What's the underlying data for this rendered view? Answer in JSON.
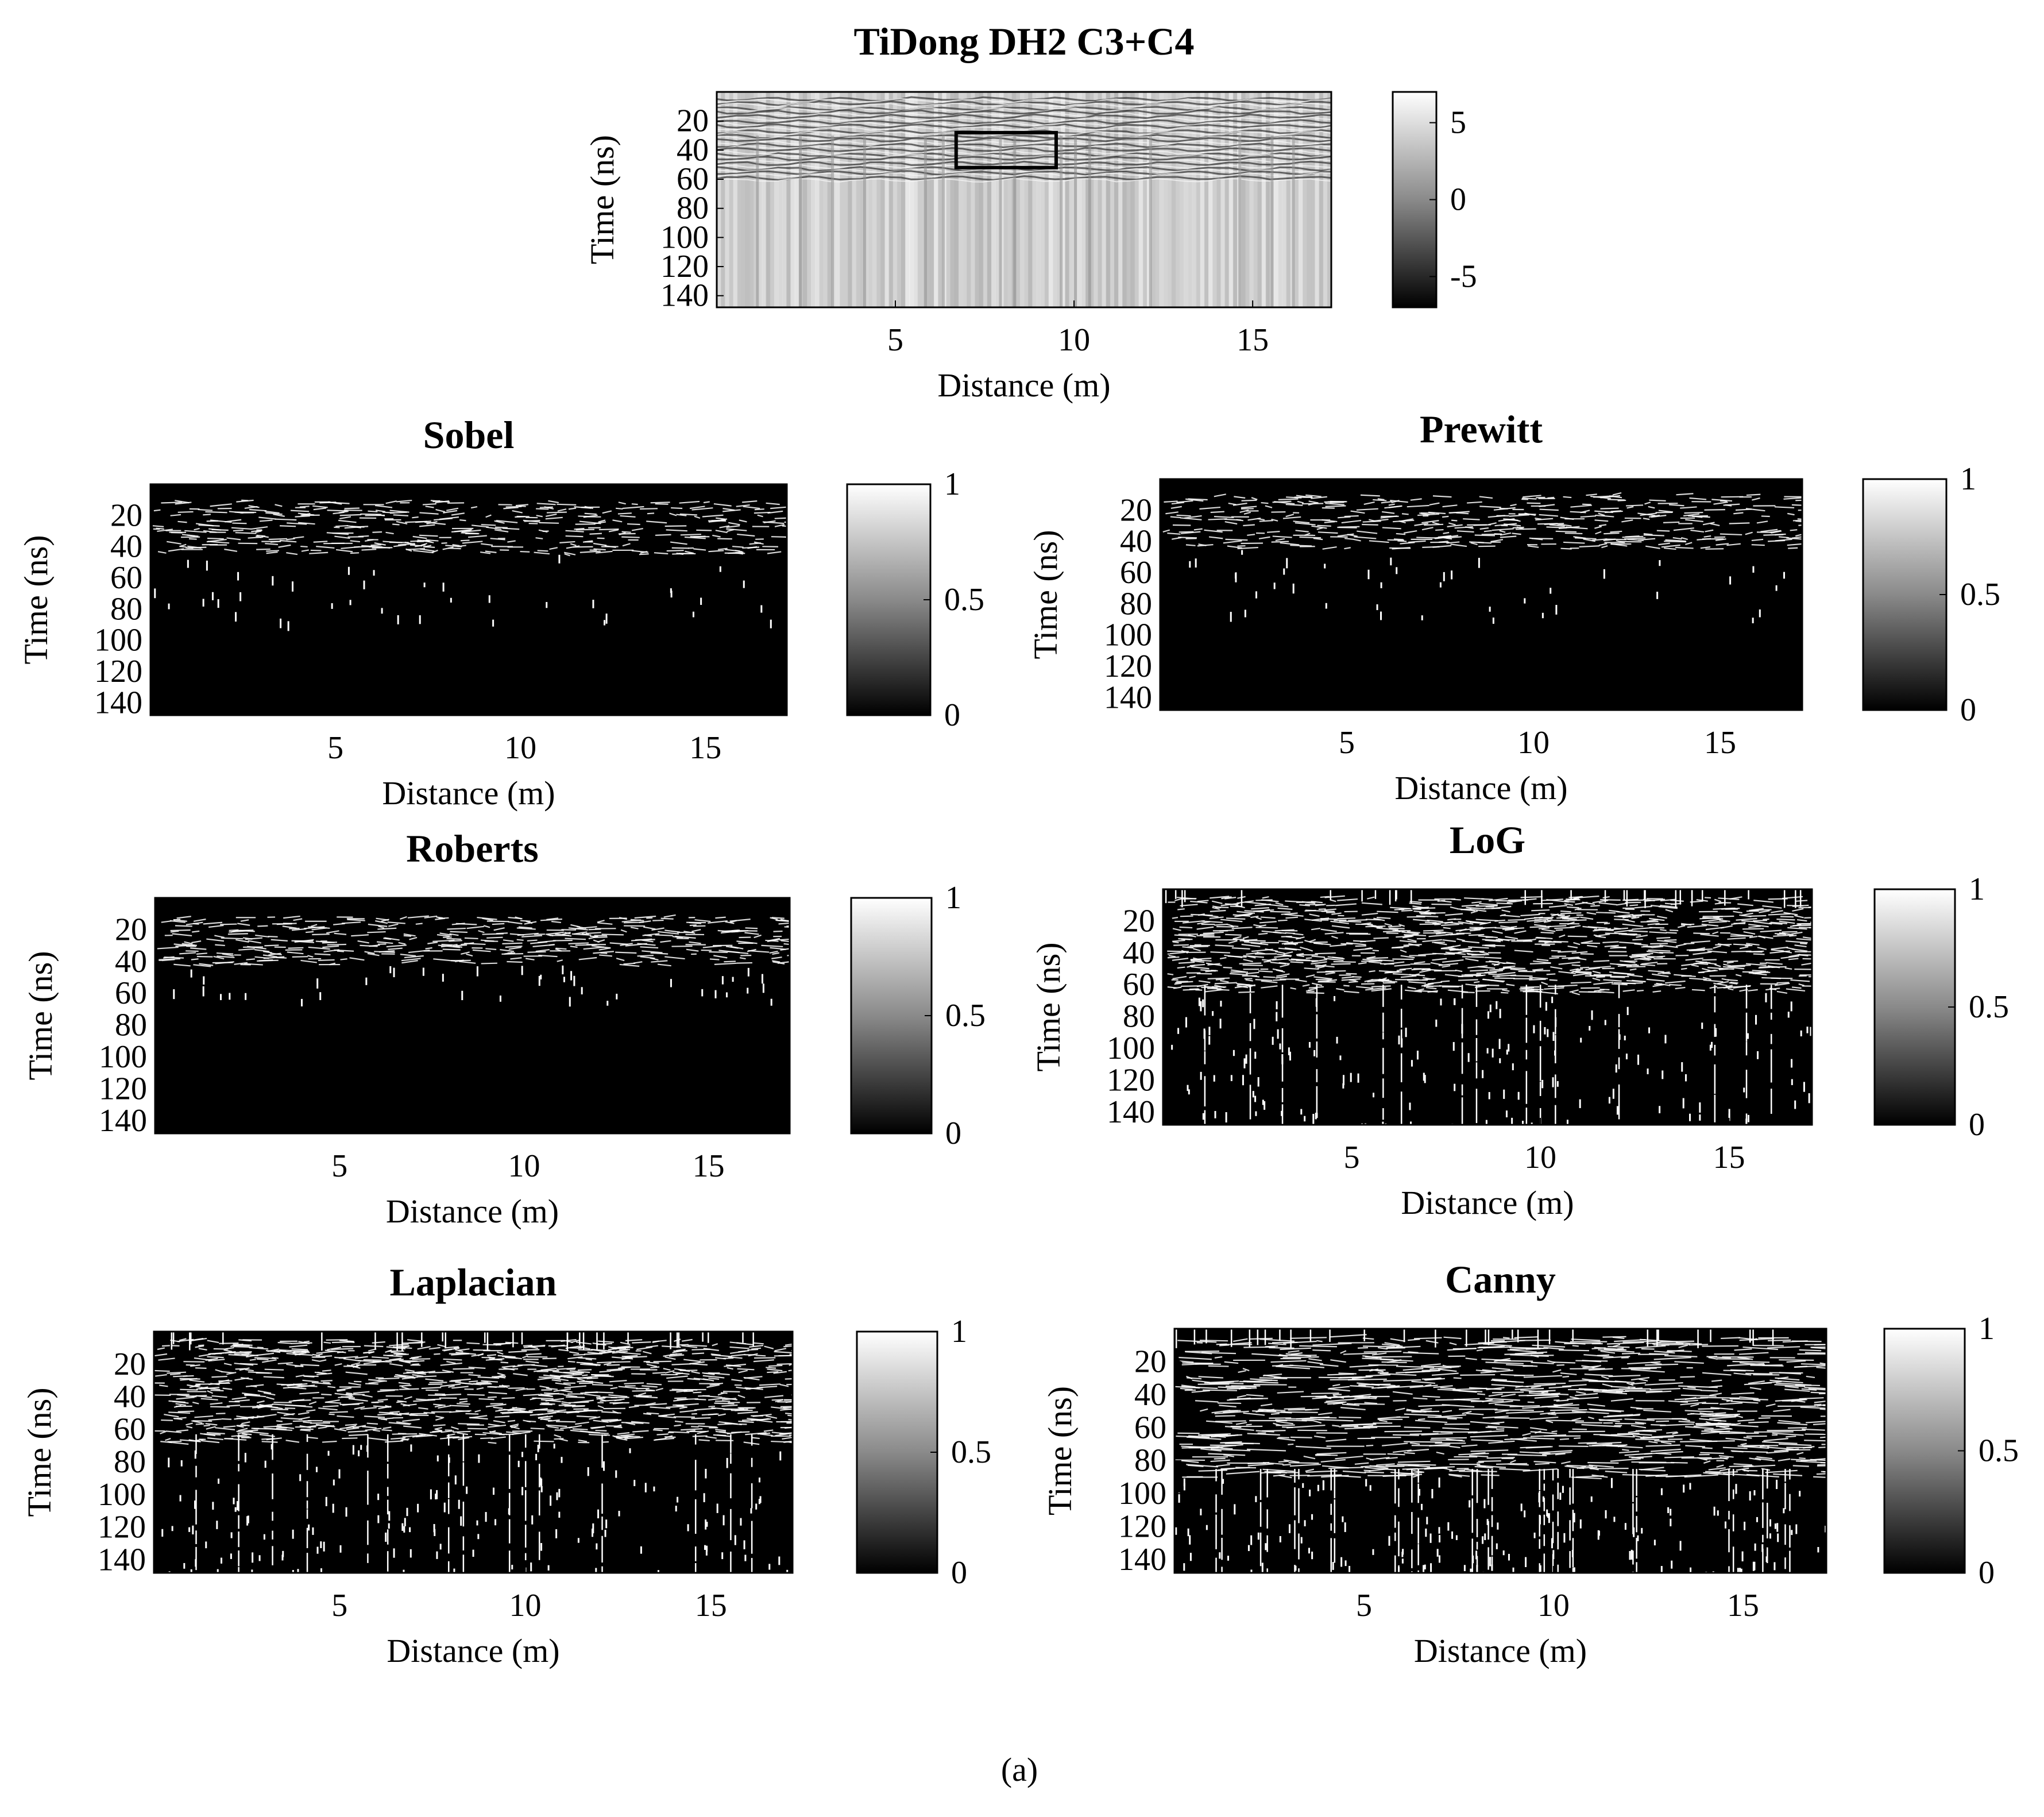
{
  "figure_caption": "(a)",
  "chart_data": [
    {
      "type": "heatmap",
      "title": "TiDong DH2 C3+C4",
      "xlabel": "Distance (m)",
      "ylabel": "Time (ns)",
      "x_ticks": [
        5,
        10,
        15
      ],
      "y_ticks": [
        20,
        40,
        60,
        80,
        100,
        120,
        140
      ],
      "xlim": [
        0,
        17.2
      ],
      "ylim": [
        0,
        148
      ],
      "colorbar": {
        "ticks": [
          5,
          0,
          -5
        ],
        "range": [
          -7,
          7
        ],
        "colormap": "gray"
      },
      "style": "radargram",
      "annotation": {
        "shape": "rectangle",
        "x_range": [
          6.7,
          9.5
        ],
        "y_range": [
          28,
          52
        ]
      }
    },
    {
      "type": "heatmap",
      "title": "Sobel",
      "xlabel": "Distance (m)",
      "ylabel": "Time (ns)",
      "x_ticks": [
        5,
        10,
        15
      ],
      "y_ticks": [
        20,
        40,
        60,
        80,
        100,
        120,
        140
      ],
      "xlim": [
        0,
        17.2
      ],
      "ylim": [
        0,
        148
      ],
      "colorbar": {
        "ticks": [
          1,
          0.5,
          0
        ],
        "range": [
          0,
          1
        ],
        "colormap": "gray"
      },
      "style": "sparse-edges",
      "edge_density": {
        "dense_time_range": [
          10,
          45
        ],
        "sparse_until": 90
      }
    },
    {
      "type": "heatmap",
      "title": "Prewitt",
      "xlabel": "Distance (m)",
      "ylabel": "Time (ns)",
      "x_ticks": [
        5,
        10,
        15
      ],
      "y_ticks": [
        20,
        40,
        60,
        80,
        100,
        120,
        140
      ],
      "xlim": [
        0,
        17.2
      ],
      "ylim": [
        0,
        148
      ],
      "colorbar": {
        "ticks": [
          1,
          0.5,
          0
        ],
        "range": [
          0,
          1
        ],
        "colormap": "gray"
      },
      "style": "sparse-edges",
      "edge_density": {
        "dense_time_range": [
          10,
          45
        ],
        "sparse_until": 90
      }
    },
    {
      "type": "heatmap",
      "title": "Roberts",
      "xlabel": "Distance (m)",
      "ylabel": "Time (ns)",
      "x_ticks": [
        5,
        10,
        15
      ],
      "y_ticks": [
        20,
        40,
        60,
        80,
        100,
        120,
        140
      ],
      "xlim": [
        0,
        17.2
      ],
      "ylim": [
        0,
        148
      ],
      "colorbar": {
        "ticks": [
          1,
          0.5,
          0
        ],
        "range": [
          0,
          1
        ],
        "colormap": "gray"
      },
      "style": "sparse-edges",
      "edge_density": {
        "dense_time_range": [
          12,
          42
        ],
        "sparse_until": 65
      }
    },
    {
      "type": "heatmap",
      "title": "LoG",
      "xlabel": "Distance (m)",
      "ylabel": "Time (ns)",
      "x_ticks": [
        5,
        10,
        15
      ],
      "y_ticks": [
        20,
        40,
        60,
        80,
        100,
        120,
        140
      ],
      "xlim": [
        0,
        17.2
      ],
      "ylim": [
        0,
        148
      ],
      "colorbar": {
        "ticks": [
          1,
          0.5,
          0
        ],
        "range": [
          0,
          1
        ],
        "colormap": "gray"
      },
      "style": "dense-edges",
      "edge_density": {
        "dense_time_range": [
          5,
          65
        ],
        "sparse_until": 148
      }
    },
    {
      "type": "heatmap",
      "title": "Laplacian",
      "xlabel": "Distance (m)",
      "ylabel": "Time (ns)",
      "x_ticks": [
        5,
        10,
        15
      ],
      "y_ticks": [
        20,
        40,
        60,
        80,
        100,
        120,
        140
      ],
      "xlim": [
        0,
        17.2
      ],
      "ylim": [
        0,
        148
      ],
      "colorbar": {
        "ticks": [
          1,
          0.5,
          0
        ],
        "range": [
          0,
          1
        ],
        "colormap": "gray"
      },
      "style": "dense-edges",
      "edge_density": {
        "dense_time_range": [
          5,
          68
        ],
        "sparse_until": 148
      }
    },
    {
      "type": "heatmap",
      "title": "Canny",
      "xlabel": "Distance (m)",
      "ylabel": "Time (ns)",
      "x_ticks": [
        5,
        10,
        15
      ],
      "y_ticks": [
        20,
        40,
        60,
        80,
        100,
        120,
        140
      ],
      "xlim": [
        0,
        17.2
      ],
      "ylim": [
        0,
        148
      ],
      "colorbar": {
        "ticks": [
          1,
          0.5,
          0
        ],
        "range": [
          0,
          1
        ],
        "colormap": "gray"
      },
      "style": "canny-edges",
      "edge_density": {
        "dense_time_range": [
          5,
          90
        ],
        "sparse_until": 148
      }
    }
  ]
}
